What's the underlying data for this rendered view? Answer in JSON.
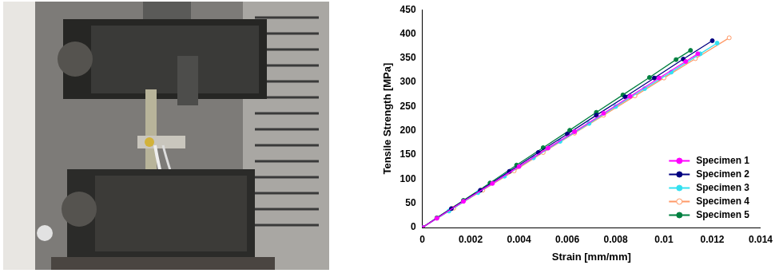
{
  "chart_data": {
    "type": "line",
    "x_label": "Strain [mm/mm]",
    "y_label": "Tensile Strength [MPa]",
    "xlim": [
      0,
      0.014
    ],
    "xticks": [
      0,
      0.002,
      0.004,
      0.006,
      0.008,
      0.01,
      0.012,
      0.014
    ],
    "ylim": [
      0,
      450
    ],
    "yticks": [
      0,
      50,
      100,
      150,
      200,
      250,
      300,
      350,
      400,
      450
    ],
    "grid": false,
    "legend": "bottom-right",
    "series": [
      {
        "name": "Specimen 1",
        "color": "#ff00ff",
        "marker": "circle",
        "x": [
          0,
          0.0006,
          0.0017,
          0.0029,
          0.004,
          0.0052,
          0.0063,
          0.0075,
          0.0086,
          0.0098,
          0.0109,
          0.0114
        ],
        "values": [
          0,
          19,
          54,
          91,
          126,
          164,
          198,
          236,
          271,
          309,
          343,
          359
        ]
      },
      {
        "name": "Specimen 2",
        "color": "#000080",
        "marker": "circle",
        "x": [
          0,
          0.0012,
          0.0024,
          0.0036,
          0.0048,
          0.006,
          0.0072,
          0.0084,
          0.0096,
          0.0108,
          0.012
        ],
        "values": [
          0,
          39,
          77,
          116,
          155,
          193,
          232,
          270,
          309,
          348,
          386
        ]
      },
      {
        "name": "Specimen 3",
        "color": "#33e0f0",
        "marker": "circle",
        "x": [
          0,
          0.0011,
          0.0023,
          0.0034,
          0.0046,
          0.0057,
          0.0069,
          0.008,
          0.0092,
          0.0103,
          0.0115,
          0.0122
        ],
        "values": [
          0,
          34,
          72,
          106,
          144,
          178,
          215,
          250,
          287,
          321,
          359,
          381
        ]
      },
      {
        "name": "Specimen 4",
        "color": "#ff9966",
        "marker": "open_circle",
        "x": [
          0,
          0.0013,
          0.0025,
          0.0038,
          0.005,
          0.0063,
          0.0075,
          0.0088,
          0.01,
          0.0113,
          0.0127
        ],
        "values": [
          0,
          40,
          77,
          117,
          155,
          195,
          232,
          272,
          309,
          349,
          392
        ]
      },
      {
        "name": "Specimen 5",
        "color": "#008040",
        "marker": "circle",
        "x": [
          0,
          0.0006,
          0.0017,
          0.0028,
          0.0039,
          0.005,
          0.0061,
          0.0072,
          0.0083,
          0.0094,
          0.0105,
          0.0111
        ],
        "values": [
          0,
          20,
          56,
          92,
          129,
          165,
          201,
          238,
          274,
          310,
          347,
          366
        ]
      }
    ]
  }
}
